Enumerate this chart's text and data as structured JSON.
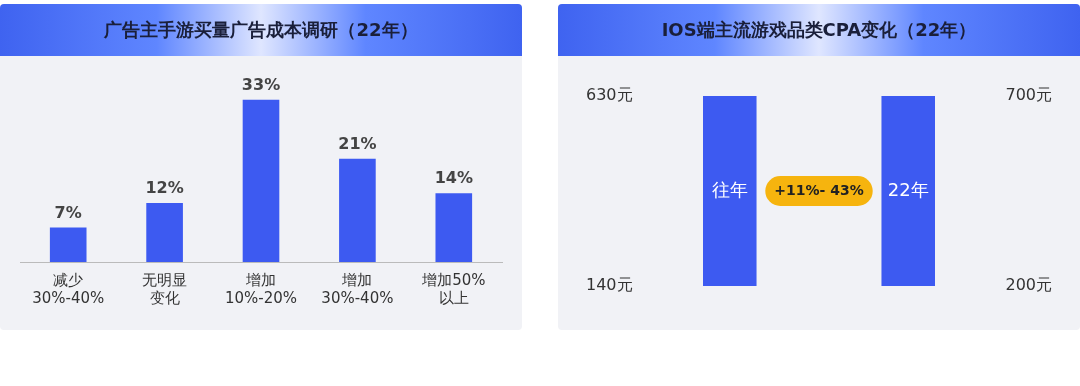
{
  "chart_data": [
    {
      "type": "bar",
      "title": "广告主手游买量广告成本调研（22年）",
      "categories": [
        "减少\n30%-40%",
        "无明显变化",
        "增加\n10%-20%",
        "增加\n30%-40%",
        "增加50%\n以上"
      ],
      "values": [
        7,
        12,
        33,
        21,
        14
      ],
      "value_labels": [
        "7%",
        "12%",
        "33%",
        "21%",
        "14%"
      ],
      "color": "#3d5af1",
      "tick_labels": "x",
      "grid": false,
      "legend": false
    },
    {
      "type": "bar",
      "title": "IOS端主流游戏品类CPA变化（22年）",
      "categories": [
        "往年",
        "22年"
      ],
      "series": [
        {
          "color": "#3d5af1",
          "base": [
            140,
            null
          ],
          "values": [
            490,
            null
          ]
        },
        {
          "color": "#3d5af1",
          "base": [
            null,
            200
          ],
          "values": [
            null,
            500
          ],
          "axis": "y2"
        }
      ],
      "ylim": [
        140,
        630
      ],
      "y2lim": [
        200,
        700
      ],
      "yticks": [
        {
          "value": 140,
          "label": "140元"
        },
        {
          "value": 630,
          "label": "630元"
        }
      ],
      "y2ticks": [
        {
          "value": 200,
          "label": "200元"
        },
        {
          "value": 700,
          "label": "700元"
        }
      ],
      "tick_labels": "y",
      "grid": false,
      "legend": false,
      "annotations": [
        "+11%- 43%"
      ]
    }
  ]
}
